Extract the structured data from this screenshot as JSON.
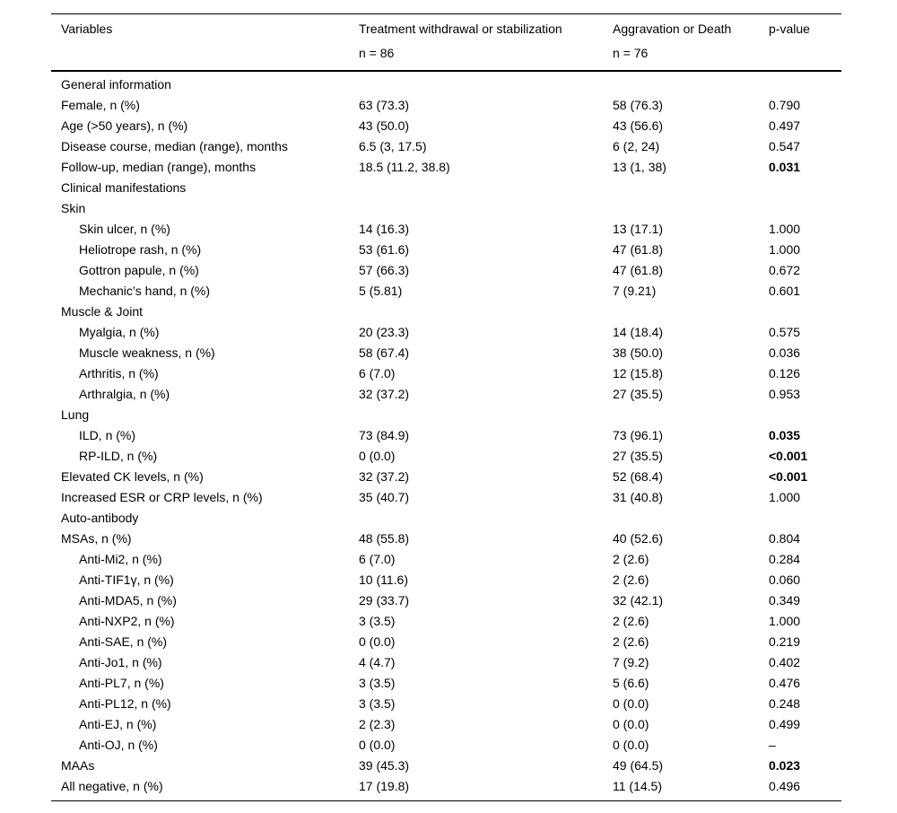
{
  "colors": {
    "text": "#000000",
    "background": "#ffffff",
    "rule": "#000000"
  },
  "table": {
    "header": {
      "col1": "Variables",
      "col2_line1": "Treatment withdrawal or stabilization",
      "col2_line2": "n = 86",
      "col3_line1": "Aggravation or Death",
      "col3_line2": "n = 76",
      "col4": "p-value"
    },
    "rows": [
      {
        "label": "General information",
        "indent": 0,
        "c2": "",
        "c3": "",
        "p": "",
        "pBold": false
      },
      {
        "label": "Female, n (%)",
        "indent": 0,
        "c2": "63 (73.3)",
        "c3": "58 (76.3)",
        "p": "0.790",
        "pBold": false
      },
      {
        "label": "Age (>50 years), n (%)",
        "indent": 0,
        "c2": "43 (50.0)",
        "c3": "43 (56.6)",
        "p": "0.497",
        "pBold": false
      },
      {
        "label": "Disease course, median (range), months",
        "indent": 0,
        "c2": "6.5 (3, 17.5)",
        "c3": "6 (2, 24)",
        "p": "0.547",
        "pBold": false
      },
      {
        "label": "Follow-up, median (range), months",
        "indent": 0,
        "c2": "18.5 (11.2, 38.8)",
        "c3": "13 (1, 38)",
        "p": "0.031",
        "pBold": true
      },
      {
        "label": "Clinical manifestations",
        "indent": 0,
        "c2": "",
        "c3": "",
        "p": "",
        "pBold": false
      },
      {
        "label": "Skin",
        "indent": 0,
        "c2": "",
        "c3": "",
        "p": "",
        "pBold": false
      },
      {
        "label": "Skin ulcer, n (%)",
        "indent": 1,
        "c2": "14 (16.3)",
        "c3": "13 (17.1)",
        "p": "1.000",
        "pBold": false
      },
      {
        "label": "Heliotrope rash, n (%)",
        "indent": 1,
        "c2": "53 (61.6)",
        "c3": "47 (61.8)",
        "p": "1.000",
        "pBold": false
      },
      {
        "label": "Gottron papule, n (%)",
        "indent": 1,
        "c2": "57 (66.3)",
        "c3": "47 (61.8)",
        "p": "0.672",
        "pBold": false
      },
      {
        "label": "Mechanic’s hand, n (%)",
        "indent": 1,
        "c2": "5 (5.81)",
        "c3": "7 (9.21)",
        "p": "0.601",
        "pBold": false
      },
      {
        "label": "Muscle & Joint",
        "indent": 0,
        "c2": "",
        "c3": "",
        "p": "",
        "pBold": false
      },
      {
        "label": "Myalgia, n (%)",
        "indent": 1,
        "c2": "20 (23.3)",
        "c3": "14 (18.4)",
        "p": "0.575",
        "pBold": false
      },
      {
        "label": "Muscle weakness, n (%)",
        "indent": 1,
        "c2": "58 (67.4)",
        "c3": "38 (50.0)",
        "p": "0.036",
        "pBold": false
      },
      {
        "label": "Arthritis, n (%)",
        "indent": 1,
        "c2": "6 (7.0)",
        "c3": "12 (15.8)",
        "p": "0.126",
        "pBold": false
      },
      {
        "label": "Arthralgia, n (%)",
        "indent": 1,
        "c2": "32 (37.2)",
        "c3": "27 (35.5)",
        "p": "0.953",
        "pBold": false
      },
      {
        "label": "Lung",
        "indent": 0,
        "c2": "",
        "c3": "",
        "p": "",
        "pBold": false
      },
      {
        "label": "ILD, n (%)",
        "indent": 1,
        "c2": "73 (84.9)",
        "c3": "73 (96.1)",
        "p": "0.035",
        "pBold": true
      },
      {
        "label": "RP-ILD, n (%)",
        "indent": 1,
        "c2": "0 (0.0)",
        "c3": "27 (35.5)",
        "p": "<0.001",
        "pBold": true
      },
      {
        "label": "Elevated CK levels, n (%)",
        "indent": 0,
        "c2": "32 (37.2)",
        "c3": "52 (68.4)",
        "p": "<0.001",
        "pBold": true
      },
      {
        "label": "Increased ESR or CRP levels, n (%)",
        "indent": 0,
        "c2": "35 (40.7)",
        "c3": "31 (40.8)",
        "p": "1.000",
        "pBold": false
      },
      {
        "label": "Auto-antibody",
        "indent": 0,
        "c2": "",
        "c3": "",
        "p": "",
        "pBold": false
      },
      {
        "label": "MSAs, n (%)",
        "indent": 0,
        "c2": "48 (55.8)",
        "c3": "40 (52.6)",
        "p": "0.804",
        "pBold": false
      },
      {
        "label": "Anti-Mi2, n (%)",
        "indent": 1,
        "c2": "6 (7.0)",
        "c3": "2 (2.6)",
        "p": "0.284",
        "pBold": false
      },
      {
        "label": "Anti-TIF1γ, n (%)",
        "indent": 1,
        "c2": "10 (11.6)",
        "c3": "2 (2.6)",
        "p": "0.060",
        "pBold": false
      },
      {
        "label": "Anti-MDA5, n (%)",
        "indent": 1,
        "c2": "29 (33.7)",
        "c3": "32 (42.1)",
        "p": "0.349",
        "pBold": false
      },
      {
        "label": "Anti-NXP2, n (%)",
        "indent": 1,
        "c2": "3 (3.5)",
        "c3": "2 (2.6)",
        "p": "1.000",
        "pBold": false
      },
      {
        "label": "Anti-SAE, n (%)",
        "indent": 1,
        "c2": "0 (0.0)",
        "c3": "2 (2.6)",
        "p": "0.219",
        "pBold": false
      },
      {
        "label": "Anti-Jo1, n (%)",
        "indent": 1,
        "c2": "4 (4.7)",
        "c3": "7 (9.2)",
        "p": "0.402",
        "pBold": false
      },
      {
        "label": "Anti-PL7, n (%)",
        "indent": 1,
        "c2": "3 (3.5)",
        "c3": "5 (6.6)",
        "p": "0.476",
        "pBold": false
      },
      {
        "label": "Anti-PL12, n (%)",
        "indent": 1,
        "c2": "3 (3.5)",
        "c3": "0 (0.0)",
        "p": "0.248",
        "pBold": false
      },
      {
        "label": "Anti-EJ, n (%)",
        "indent": 1,
        "c2": "2 (2.3)",
        "c3": "0 (0.0)",
        "p": "0.499",
        "pBold": false
      },
      {
        "label": "Anti-OJ, n (%)",
        "indent": 1,
        "c2": "0 (0.0)",
        "c3": "0 (0.0)",
        "p": "–",
        "pBold": false
      },
      {
        "label": "MAAs",
        "indent": 0,
        "c2": "39 (45.3)",
        "c3": "49 (64.5)",
        "p": "0.023",
        "pBold": true
      },
      {
        "label": "All negative, n (%)",
        "indent": 0,
        "c2": "17 (19.8)",
        "c3": "11 (14.5)",
        "p": "0.496",
        "pBold": false
      }
    ]
  }
}
